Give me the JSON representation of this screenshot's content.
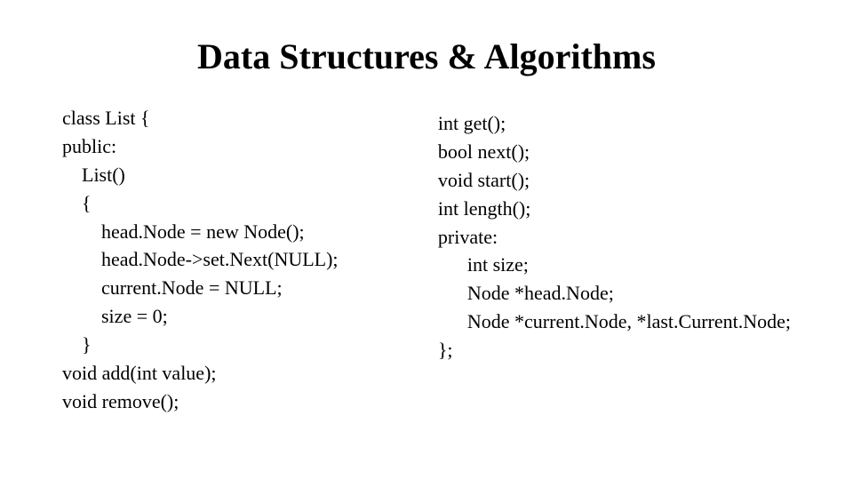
{
  "title": "Data Structures & Algorithms",
  "title_fontsize": 40,
  "title_fontweight": "bold",
  "body_fontsize": 22,
  "font_family": "Times New Roman",
  "text_color": "#000000",
  "background_color": "#ffffff",
  "left_code": "class List {\npublic:\n    List()\n    {\n        head.Node = new Node();\n        head.Node->set.Next(NULL);\n        current.Node = NULL;\n        size = 0;\n    }\nvoid add(int value);\nvoid remove();",
  "right_code": "int get();\nbool next();\nvoid start();\nint length();\nprivate:\n      int size;\n      Node *head.Node;\n      Node *current.Node, *last.Current.Node;\n};"
}
